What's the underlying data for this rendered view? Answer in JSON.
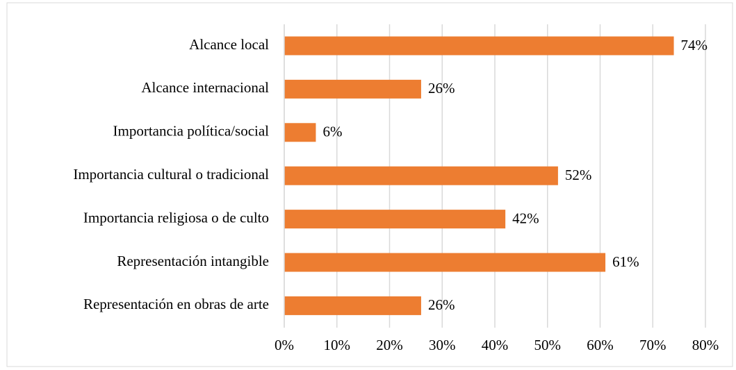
{
  "chart_data": {
    "type": "bar",
    "orientation": "horizontal",
    "categories": [
      "Alcance local",
      "Alcance internacional",
      "Importancia política/social",
      "Importancia cultural o tradicional",
      "Importancia religiosa o de culto",
      "Representación intangible",
      "Representación en obras de arte"
    ],
    "values": [
      74,
      26,
      6,
      52,
      42,
      61,
      26
    ],
    "value_labels": [
      "74%",
      "26%",
      "6%",
      "52%",
      "42%",
      "61%",
      "26%"
    ],
    "color": "#ed7d31",
    "xlim": [
      0,
      80
    ],
    "xticks": [
      {
        "value": 0,
        "label": "0%"
      },
      {
        "value": 10,
        "label": "10%"
      },
      {
        "value": 20,
        "label": "20%"
      },
      {
        "value": 30,
        "label": "30%"
      },
      {
        "value": 40,
        "label": "40%"
      },
      {
        "value": 50,
        "label": "50%"
      },
      {
        "value": 60,
        "label": "60%"
      },
      {
        "value": 70,
        "label": "70%"
      },
      {
        "value": 80,
        "label": "80%"
      }
    ],
    "grid": true
  }
}
